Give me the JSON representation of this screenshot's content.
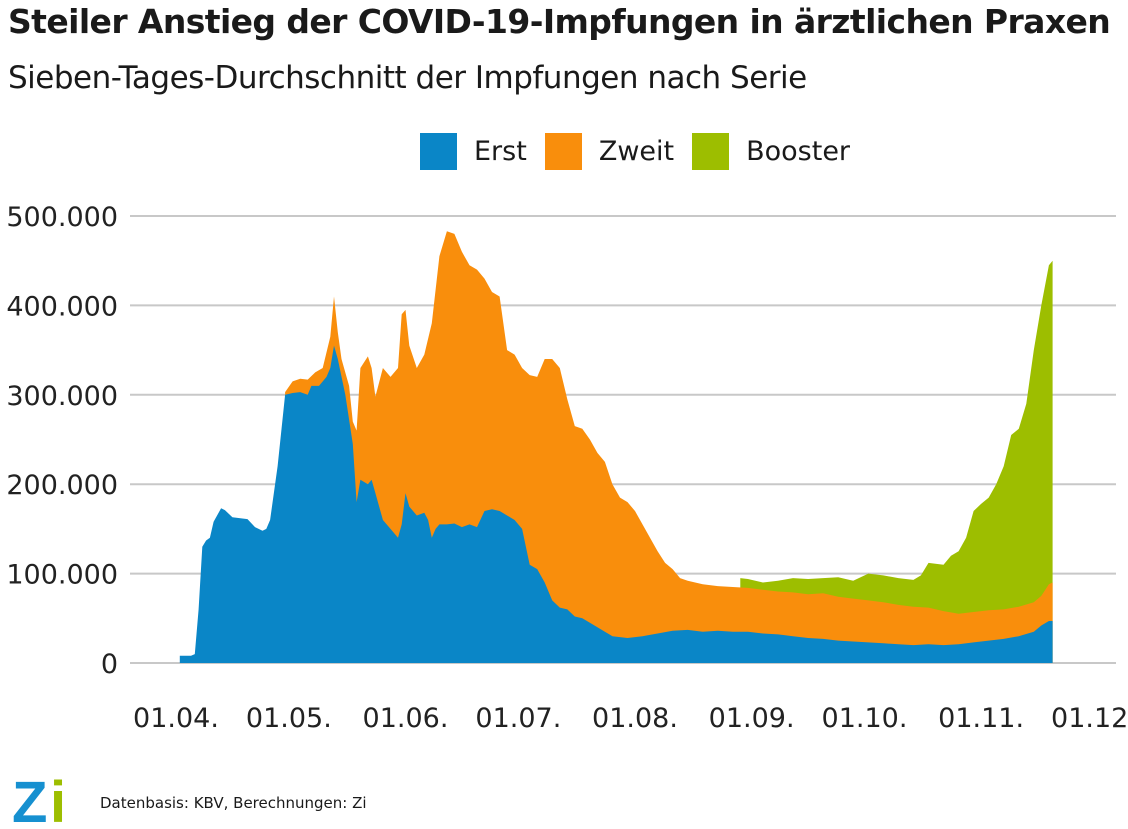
{
  "title": "Steiler Anstieg der COVID-19-Impfungen in ärztlichen Praxen",
  "subtitle": "Sieben-Tages-Durchschnitt der Impfungen nach Serie",
  "footer": "Datenbasis: KBV, Berechnungen: Zi",
  "logo_text": "Zi",
  "colors": {
    "erst": "#0a86c7",
    "zweit": "#f98e0c",
    "booster": "#9dbe00",
    "grid": "#c8c8c8",
    "logo_blue": "#1690d0",
    "logo_green": "#9dbe00"
  },
  "chart_data": {
    "type": "area",
    "stacked": true,
    "title": "Steiler Anstieg der COVID-19-Impfungen in ärztlichen Praxen",
    "subtitle": "Sieben-Tages-Durchschnitt der Impfungen nach Serie",
    "xlabel": "",
    "ylabel": "",
    "x_unit": "days since 01.04.",
    "xlim": [
      0,
      244
    ],
    "ylim": [
      0,
      500000
    ],
    "grid": true,
    "legend_position": "top-center",
    "y_ticks": [
      {
        "value": 0,
        "label": "0"
      },
      {
        "value": 100000,
        "label": "100.000"
      },
      {
        "value": 200000,
        "label": "200.000"
      },
      {
        "value": 300000,
        "label": "300.000"
      },
      {
        "value": 400000,
        "label": "400.000"
      },
      {
        "value": 500000,
        "label": "500.000"
      }
    ],
    "x_ticks": [
      {
        "value": 0,
        "label": "01.04."
      },
      {
        "value": 30,
        "label": "01.05."
      },
      {
        "value": 61,
        "label": "01.06."
      },
      {
        "value": 91,
        "label": "01.07."
      },
      {
        "value": 122,
        "label": "01.08."
      },
      {
        "value": 153,
        "label": "01.09."
      },
      {
        "value": 183,
        "label": "01.10."
      },
      {
        "value": 214,
        "label": "01.11."
      },
      {
        "value": 244,
        "label": "01.12."
      }
    ],
    "series": [
      {
        "name": "Erst",
        "color": "#0a86c7",
        "points": [
          [
            1,
            0
          ],
          [
            1,
            8000
          ],
          [
            4,
            8000
          ],
          [
            5,
            10000
          ],
          [
            6,
            60000
          ],
          [
            7,
            130000
          ],
          [
            8,
            137000
          ],
          [
            9,
            140000
          ],
          [
            10,
            158000
          ],
          [
            12,
            173000
          ],
          [
            13,
            171000
          ],
          [
            15,
            163000
          ],
          [
            19,
            161000
          ],
          [
            21,
            152000
          ],
          [
            23,
            148000
          ],
          [
            24,
            150000
          ],
          [
            25,
            160000
          ],
          [
            27,
            220000
          ],
          [
            29,
            300000
          ],
          [
            31,
            302000
          ],
          [
            33,
            303000
          ],
          [
            35,
            300000
          ],
          [
            36,
            310000
          ],
          [
            38,
            310000
          ],
          [
            40,
            320000
          ],
          [
            41,
            330000
          ],
          [
            42,
            355000
          ],
          [
            43,
            340000
          ],
          [
            45,
            300000
          ],
          [
            47,
            245000
          ],
          [
            48,
            180000
          ],
          [
            49,
            205000
          ],
          [
            51,
            200000
          ],
          [
            52,
            205000
          ],
          [
            53,
            190000
          ],
          [
            55,
            160000
          ],
          [
            57,
            150000
          ],
          [
            59,
            140000
          ],
          [
            60,
            155000
          ],
          [
            61,
            190000
          ],
          [
            62,
            175000
          ],
          [
            64,
            165000
          ],
          [
            66,
            168000
          ],
          [
            67,
            160000
          ],
          [
            68,
            140000
          ],
          [
            69,
            150000
          ],
          [
            70,
            155000
          ],
          [
            72,
            155000
          ],
          [
            74,
            156000
          ],
          [
            76,
            152000
          ],
          [
            78,
            155000
          ],
          [
            80,
            152000
          ],
          [
            82,
            170000
          ],
          [
            84,
            172000
          ],
          [
            86,
            170000
          ],
          [
            88,
            165000
          ],
          [
            90,
            160000
          ],
          [
            92,
            150000
          ],
          [
            94,
            110000
          ],
          [
            96,
            105000
          ],
          [
            98,
            90000
          ],
          [
            100,
            70000
          ],
          [
            102,
            62000
          ],
          [
            104,
            60000
          ],
          [
            106,
            52000
          ],
          [
            108,
            50000
          ],
          [
            110,
            45000
          ],
          [
            112,
            40000
          ],
          [
            114,
            35000
          ],
          [
            116,
            30000
          ],
          [
            120,
            28000
          ],
          [
            124,
            30000
          ],
          [
            128,
            33000
          ],
          [
            132,
            36000
          ],
          [
            136,
            37000
          ],
          [
            140,
            35000
          ],
          [
            144,
            36000
          ],
          [
            148,
            35000
          ],
          [
            152,
            35000
          ],
          [
            156,
            33000
          ],
          [
            160,
            32000
          ],
          [
            164,
            30000
          ],
          [
            168,
            28000
          ],
          [
            172,
            27000
          ],
          [
            176,
            25000
          ],
          [
            180,
            24000
          ],
          [
            184,
            23000
          ],
          [
            188,
            22000
          ],
          [
            192,
            21000
          ],
          [
            196,
            20000
          ],
          [
            200,
            21000
          ],
          [
            204,
            20000
          ],
          [
            208,
            21000
          ],
          [
            212,
            23000
          ],
          [
            216,
            25000
          ],
          [
            220,
            27000
          ],
          [
            224,
            30000
          ],
          [
            228,
            35000
          ],
          [
            230,
            42000
          ],
          [
            232,
            47000
          ],
          [
            233,
            47000
          ],
          [
            233,
            0
          ]
        ]
      },
      {
        "name": "Zweit",
        "color": "#f98e0c",
        "points": [
          [
            29,
            303000
          ],
          [
            31,
            315000
          ],
          [
            33,
            318000
          ],
          [
            35,
            317000
          ],
          [
            37,
            325000
          ],
          [
            39,
            330000
          ],
          [
            41,
            365000
          ],
          [
            42,
            410000
          ],
          [
            43,
            370000
          ],
          [
            44,
            340000
          ],
          [
            46,
            310000
          ],
          [
            47,
            270000
          ],
          [
            48,
            260000
          ],
          [
            49,
            330000
          ],
          [
            51,
            343000
          ],
          [
            52,
            330000
          ],
          [
            53,
            298000
          ],
          [
            55,
            330000
          ],
          [
            57,
            320000
          ],
          [
            59,
            330000
          ],
          [
            60,
            390000
          ],
          [
            61,
            395000
          ],
          [
            62,
            355000
          ],
          [
            64,
            330000
          ],
          [
            66,
            345000
          ],
          [
            68,
            380000
          ],
          [
            70,
            455000
          ],
          [
            72,
            483000
          ],
          [
            74,
            480000
          ],
          [
            76,
            460000
          ],
          [
            78,
            445000
          ],
          [
            80,
            440000
          ],
          [
            82,
            430000
          ],
          [
            84,
            415000
          ],
          [
            86,
            410000
          ],
          [
            88,
            350000
          ],
          [
            90,
            345000
          ],
          [
            92,
            330000
          ],
          [
            94,
            322000
          ],
          [
            96,
            320000
          ],
          [
            98,
            340000
          ],
          [
            100,
            340000
          ],
          [
            102,
            330000
          ],
          [
            104,
            295000
          ],
          [
            106,
            265000
          ],
          [
            108,
            262000
          ],
          [
            110,
            250000
          ],
          [
            112,
            235000
          ],
          [
            114,
            225000
          ],
          [
            116,
            200000
          ],
          [
            118,
            185000
          ],
          [
            120,
            180000
          ],
          [
            122,
            170000
          ],
          [
            124,
            155000
          ],
          [
            126,
            140000
          ],
          [
            128,
            125000
          ],
          [
            130,
            112000
          ],
          [
            132,
            105000
          ],
          [
            134,
            95000
          ],
          [
            136,
            92000
          ],
          [
            140,
            88000
          ],
          [
            144,
            86000
          ],
          [
            148,
            85000
          ],
          [
            152,
            84000
          ],
          [
            156,
            82000
          ],
          [
            160,
            80000
          ],
          [
            164,
            79000
          ],
          [
            168,
            77000
          ],
          [
            172,
            78000
          ],
          [
            176,
            74000
          ],
          [
            180,
            72000
          ],
          [
            184,
            70000
          ],
          [
            188,
            68000
          ],
          [
            192,
            65000
          ],
          [
            196,
            63000
          ],
          [
            200,
            62000
          ],
          [
            204,
            58000
          ],
          [
            208,
            55000
          ],
          [
            212,
            57000
          ],
          [
            216,
            59000
          ],
          [
            220,
            60000
          ],
          [
            224,
            63000
          ],
          [
            228,
            68000
          ],
          [
            230,
            75000
          ],
          [
            232,
            88000
          ],
          [
            233,
            90000
          ]
        ]
      },
      {
        "name": "Booster",
        "color": "#9dbe00",
        "points": [
          [
            150,
            95000
          ],
          [
            152,
            94000
          ],
          [
            156,
            90000
          ],
          [
            160,
            92000
          ],
          [
            164,
            95000
          ],
          [
            168,
            94000
          ],
          [
            172,
            95000
          ],
          [
            176,
            96000
          ],
          [
            180,
            92000
          ],
          [
            184,
            100000
          ],
          [
            188,
            98000
          ],
          [
            192,
            95000
          ],
          [
            196,
            93000
          ],
          [
            198,
            98000
          ],
          [
            200,
            112000
          ],
          [
            204,
            110000
          ],
          [
            206,
            120000
          ],
          [
            208,
            125000
          ],
          [
            210,
            140000
          ],
          [
            212,
            170000
          ],
          [
            214,
            178000
          ],
          [
            216,
            185000
          ],
          [
            218,
            200000
          ],
          [
            220,
            220000
          ],
          [
            222,
            255000
          ],
          [
            224,
            262000
          ],
          [
            226,
            290000
          ],
          [
            228,
            350000
          ],
          [
            230,
            400000
          ],
          [
            232,
            445000
          ],
          [
            233,
            450000
          ]
        ]
      }
    ]
  }
}
